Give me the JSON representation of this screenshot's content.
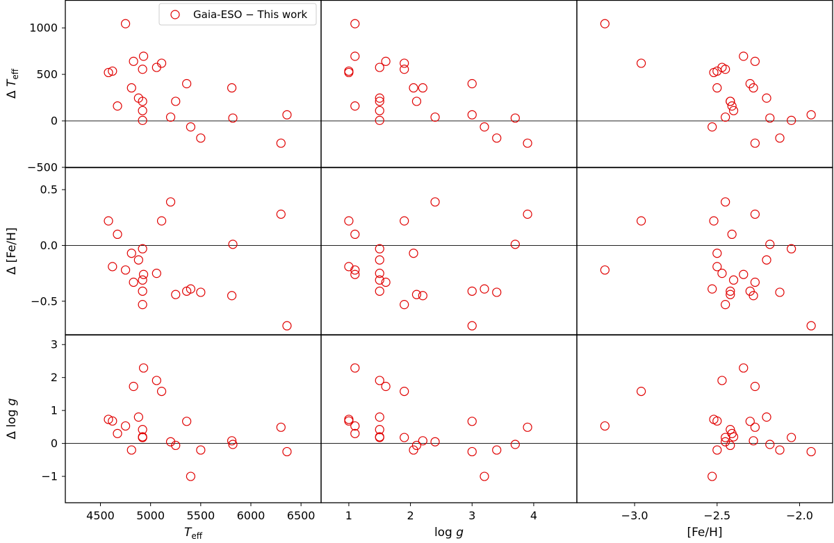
{
  "chart_data": {
    "type": "scatter",
    "legend": {
      "label": "Gaia-ESO − This work",
      "location": "top-left",
      "marker_color": "#e00000"
    },
    "columns": [
      {
        "id": "teff",
        "xlabel": "T_eff",
        "xlim": [
          4150,
          6700
        ],
        "xticks": [
          4500,
          5000,
          5500,
          6000,
          6500
        ],
        "tick_labels": [
          "4500",
          "5000",
          "5500",
          "6000",
          "6500"
        ]
      },
      {
        "id": "logg",
        "xlabel": "log g",
        "xlim": [
          0.55,
          4.7
        ],
        "xticks": [
          1,
          2,
          3,
          4
        ],
        "tick_labels": [
          "1",
          "2",
          "3",
          "4"
        ]
      },
      {
        "id": "feh",
        "xlabel": "[Fe/H]",
        "xlim": [
          -3.35,
          -1.8
        ],
        "xticks": [
          -3.0,
          -2.5,
          -2.0
        ],
        "tick_labels": [
          "−3.0",
          "−2.5",
          "−2.0"
        ]
      }
    ],
    "rows": [
      {
        "id": "dteff",
        "ylabel": "Δ T_eff",
        "ylim": [
          -500,
          1300
        ],
        "yticks": [
          -500,
          0,
          500,
          1000
        ],
        "tick_labels": [
          "−500",
          "0",
          "500",
          "1000"
        ]
      },
      {
        "id": "dfeh",
        "ylabel": "Δ [Fe/H]",
        "ylim": [
          -0.8,
          0.7
        ],
        "yticks": [
          -0.5,
          0.0,
          0.5
        ],
        "tick_labels": [
          "−0.5",
          "0.0",
          "0.5"
        ]
      },
      {
        "id": "dlogg",
        "ylabel": "Δ log g",
        "ylim": [
          -1.8,
          3.3
        ],
        "yticks": [
          -1,
          0,
          1,
          2,
          3
        ],
        "tick_labels": [
          "−1",
          "0",
          "1",
          "2",
          "3"
        ]
      }
    ],
    "stars": [
      {
        "teff": 4750,
        "logg": 1.1,
        "feh": -3.18,
        "dteff": 1045,
        "dfeh": -0.22,
        "dlogg": 0.53
      },
      {
        "teff": 4580,
        "logg": 1.0,
        "feh": -2.52,
        "dteff": 520,
        "dfeh": 0.22,
        "dlogg": 0.73
      },
      {
        "teff": 4620,
        "logg": 1.0,
        "feh": -2.5,
        "dteff": 535,
        "dfeh": -0.19,
        "dlogg": 0.68
      },
      {
        "teff": 4670,
        "logg": 1.1,
        "feh": -2.41,
        "dteff": 160,
        "dfeh": 0.1,
        "dlogg": 0.3
      },
      {
        "teff": 4810,
        "logg": 2.05,
        "feh": -2.5,
        "dteff": 355,
        "dfeh": -0.07,
        "dlogg": -0.2
      },
      {
        "teff": 4830,
        "logg": 1.6,
        "feh": -2.27,
        "dteff": 640,
        "dfeh": -0.33,
        "dlogg": 1.73
      },
      {
        "teff": 4880,
        "logg": 1.5,
        "feh": -2.2,
        "dteff": 245,
        "dfeh": -0.13,
        "dlogg": 0.8
      },
      {
        "teff": 4920,
        "logg": 1.9,
        "feh": -2.45,
        "dteff": 555,
        "dfeh": -0.53,
        "dlogg": 0.18
      },
      {
        "teff": 4920,
        "logg": 1.5,
        "feh": -2.42,
        "dteff": 210,
        "dfeh": -0.41,
        "dlogg": 0.42
      },
      {
        "teff": 4920,
        "logg": 1.5,
        "feh": -2.4,
        "dteff": 110,
        "dfeh": -0.31,
        "dlogg": 0.2
      },
      {
        "teff": 4920,
        "logg": 1.5,
        "feh": -2.05,
        "dteff": 5,
        "dfeh": -0.03,
        "dlogg": 0.18
      },
      {
        "teff": 4930,
        "logg": 1.1,
        "feh": -2.34,
        "dteff": 695,
        "dfeh": -0.26,
        "dlogg": 2.29
      },
      {
        "teff": 5060,
        "logg": 1.5,
        "feh": -2.47,
        "dteff": 575,
        "dfeh": -0.25,
        "dlogg": 1.91
      },
      {
        "teff": 5110,
        "logg": 1.9,
        "feh": -2.96,
        "dteff": 620,
        "dfeh": 0.22,
        "dlogg": 1.58
      },
      {
        "teff": 5200,
        "logg": 2.4,
        "feh": -2.45,
        "dteff": 40,
        "dfeh": 0.39,
        "dlogg": 0.05
      },
      {
        "teff": 5250,
        "logg": 2.1,
        "feh": -2.42,
        "dteff": 210,
        "dfeh": -0.44,
        "dlogg": -0.06
      },
      {
        "teff": 5360,
        "logg": 3.0,
        "feh": -2.3,
        "dteff": 400,
        "dfeh": -0.41,
        "dlogg": 0.67
      },
      {
        "teff": 5400,
        "logg": 3.2,
        "feh": -2.53,
        "dteff": -65,
        "dfeh": -0.39,
        "dlogg": -1.0
      },
      {
        "teff": 5500,
        "logg": 3.4,
        "feh": -2.12,
        "dteff": -185,
        "dfeh": -0.42,
        "dlogg": -0.2
      },
      {
        "teff": 5810,
        "logg": 2.2,
        "feh": -2.28,
        "dteff": 355,
        "dfeh": -0.45,
        "dlogg": 0.08
      },
      {
        "teff": 5820,
        "logg": 3.7,
        "feh": -2.18,
        "dteff": 30,
        "dfeh": 0.01,
        "dlogg": -0.03
      },
      {
        "teff": 6300,
        "logg": 3.9,
        "feh": -2.27,
        "dteff": -240,
        "dfeh": 0.28,
        "dlogg": 0.49
      },
      {
        "teff": 6360,
        "logg": 3.0,
        "feh": -1.93,
        "dteff": 65,
        "dfeh": -0.72,
        "dlogg": -0.25
      }
    ]
  }
}
